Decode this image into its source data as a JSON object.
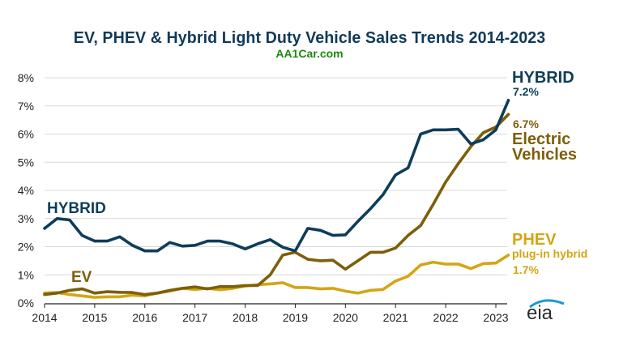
{
  "header": {
    "title": "EV, PHEV & Hybrid Light Duty Vehicle Sales Trends 2014-2023",
    "subtitle": "AA1Car.com"
  },
  "annotations": {
    "hybrid_left": "HYBRID",
    "ev_left": "EV",
    "hybrid_right_name": "HYBRID",
    "hybrid_right_value": "7.2%",
    "ev_right_value": "6.7%",
    "ev_right_name_line1": "Electric",
    "ev_right_name_line2": "Vehicles",
    "phev_right_name": "PHEV",
    "phev_right_sub": "plug-in hybrid",
    "phev_right_value": "1.7%"
  },
  "logo": {
    "text": "eia",
    "name": "eia-logo"
  },
  "colors": {
    "hybrid": "#0e3d5a",
    "ev": "#7d5f0a",
    "phev": "#d4a514",
    "title": "#103a5a",
    "subtitle": "#1e8a0c",
    "grid": "#d9d9d9"
  },
  "chart_data": {
    "type": "line",
    "title": "EV, PHEV & Hybrid Light Duty Vehicle Sales Trends 2014-2023",
    "subtitle": "AA1Car.com",
    "xlabel": "",
    "ylabel": "",
    "x_ticks": [
      "2014",
      "2015",
      "2016",
      "2017",
      "2018",
      "2019",
      "2020",
      "2021",
      "2022",
      "2023"
    ],
    "y_ticks": [
      "0%",
      "1%",
      "2%",
      "3%",
      "4%",
      "5%",
      "6%",
      "7%",
      "8%"
    ],
    "xlim": [
      2014,
      2023.35
    ],
    "ylim": [
      0,
      8
    ],
    "grid": "horizontal",
    "legend": "inline labels at right",
    "x": [
      2014.0,
      2014.25,
      2014.5,
      2014.75,
      2015.0,
      2015.25,
      2015.5,
      2015.75,
      2016.0,
      2016.25,
      2016.5,
      2016.75,
      2017.0,
      2017.25,
      2017.5,
      2017.75,
      2018.0,
      2018.25,
      2018.5,
      2018.75,
      2019.0,
      2019.25,
      2019.5,
      2019.75,
      2020.0,
      2020.25,
      2020.5,
      2020.75,
      2021.0,
      2021.25,
      2021.5,
      2021.75,
      2022.0,
      2022.25,
      2022.5,
      2022.75,
      2023.0,
      2023.25
    ],
    "series": [
      {
        "name": "HYBRID",
        "key": "hybrid",
        "values": [
          2.65,
          3.0,
          2.95,
          2.4,
          2.2,
          2.2,
          2.35,
          2.05,
          1.85,
          1.85,
          2.15,
          2.02,
          2.05,
          2.2,
          2.2,
          2.1,
          1.92,
          2.1,
          2.25,
          1.98,
          1.85,
          2.65,
          2.58,
          2.4,
          2.42,
          2.9,
          3.35,
          3.85,
          4.55,
          4.8,
          6.0,
          6.15,
          6.15,
          6.17,
          5.65,
          5.8,
          6.15,
          7.2
        ]
      },
      {
        "name": "Electric Vehicles",
        "key": "ev",
        "values": [
          0.3,
          0.35,
          0.45,
          0.5,
          0.35,
          0.4,
          0.38,
          0.37,
          0.3,
          0.35,
          0.45,
          0.52,
          0.57,
          0.5,
          0.58,
          0.58,
          0.62,
          0.62,
          1.0,
          1.7,
          1.8,
          1.55,
          1.5,
          1.52,
          1.2,
          1.5,
          1.8,
          1.8,
          1.95,
          2.4,
          2.75,
          3.5,
          4.3,
          4.95,
          5.55,
          6.05,
          6.25,
          6.7
        ]
      },
      {
        "name": "PHEV plug-in hybrid",
        "key": "phev",
        "values": [
          0.35,
          0.37,
          0.3,
          0.25,
          0.2,
          0.22,
          0.22,
          0.28,
          0.25,
          0.35,
          0.42,
          0.52,
          0.48,
          0.52,
          0.47,
          0.52,
          0.6,
          0.65,
          0.68,
          0.72,
          0.55,
          0.55,
          0.5,
          0.52,
          0.42,
          0.35,
          0.45,
          0.48,
          0.78,
          0.95,
          1.35,
          1.45,
          1.38,
          1.38,
          1.22,
          1.4,
          1.42,
          1.7
        ]
      }
    ]
  }
}
